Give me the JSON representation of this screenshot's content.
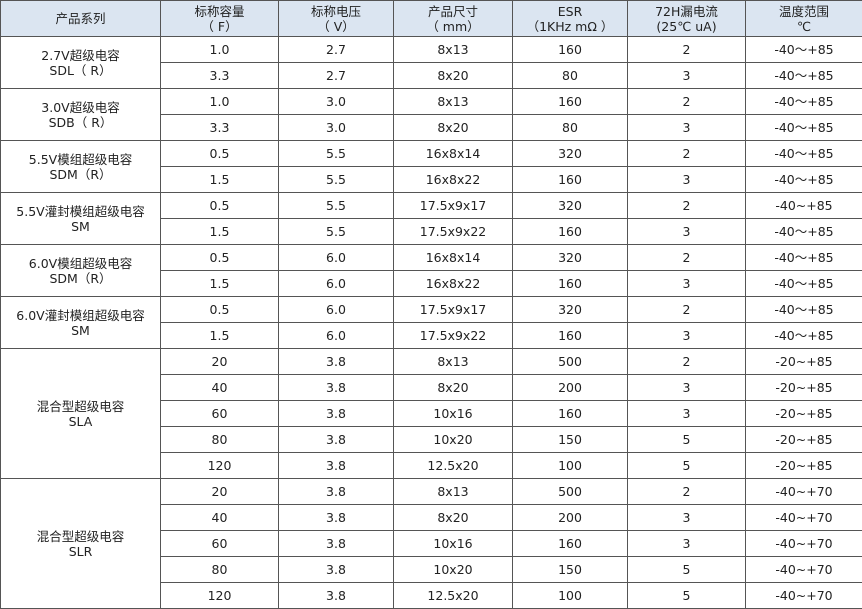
{
  "table": {
    "header": [
      [
        "产品系列"
      ],
      [
        "标称容量",
        "（ F）"
      ],
      [
        "标称电压",
        "（ V）"
      ],
      [
        "产品尺寸",
        "（ mm）"
      ],
      [
        "ESR",
        "（1KHz mΩ ）"
      ],
      [
        "72H漏电流",
        "(25℃ uA)"
      ],
      [
        "温度范围",
        "℃"
      ]
    ],
    "groups": [
      {
        "name": [
          "2.7V超级电容",
          "SDL（ R）"
        ],
        "rows": [
          [
            "1.0",
            "2.7",
            "8x13",
            "160",
            "2",
            "-40～+85"
          ],
          [
            "3.3",
            "2.7",
            "8x20",
            "80",
            "3",
            "-40～+85"
          ]
        ]
      },
      {
        "name": [
          "3.0V超级电容",
          "SDB（ R）"
        ],
        "rows": [
          [
            "1.0",
            "3.0",
            "8x13",
            "160",
            "2",
            "-40～+85"
          ],
          [
            "3.3",
            "3.0",
            "8x20",
            "80",
            "3",
            "-40～+85"
          ]
        ]
      },
      {
        "name": [
          "5.5V模组超级电容",
          "SDM（R）"
        ],
        "rows": [
          [
            "0.5",
            "5.5",
            "16x8x14",
            "320",
            "2",
            "-40～+85"
          ],
          [
            "1.5",
            "5.5",
            "16x8x22",
            "160",
            "3",
            "-40～+85"
          ]
        ]
      },
      {
        "name": [
          "5.5V灌封模组超级电容",
          "SM"
        ],
        "rows": [
          [
            "0.5",
            "5.5",
            "17.5x9x17",
            "320",
            "2",
            "-40~+85"
          ],
          [
            "1.5",
            "5.5",
            "17.5x9x22",
            "160",
            "3",
            "-40～+85"
          ]
        ]
      },
      {
        "name": [
          "6.0V模组超级电容",
          "SDM（R）"
        ],
        "rows": [
          [
            "0.5",
            "6.0",
            "16x8x14",
            "320",
            "2",
            "-40～+85"
          ],
          [
            "1.5",
            "6.0",
            "16x8x22",
            "160",
            "3",
            "-40～+85"
          ]
        ]
      },
      {
        "name": [
          "6.0V灌封模组超级电容",
          "SM"
        ],
        "rows": [
          [
            "0.5",
            "6.0",
            "17.5x9x17",
            "320",
            "2",
            "-40～+85"
          ],
          [
            "1.5",
            "6.0",
            "17.5x9x22",
            "160",
            "3",
            "-40～+85"
          ]
        ]
      },
      {
        "name": [
          "混合型超级电容",
          "SLA"
        ],
        "rows": [
          [
            "20",
            "3.8",
            "8x13",
            "500",
            "2",
            "-20~+85"
          ],
          [
            "40",
            "3.8",
            "8x20",
            "200",
            "3",
            "-20~+85"
          ],
          [
            "60",
            "3.8",
            "10x16",
            "160",
            "3",
            "-20~+85"
          ],
          [
            "80",
            "3.8",
            "10x20",
            "150",
            "5",
            "-20~+85"
          ],
          [
            "120",
            "3.8",
            "12.5x20",
            "100",
            "5",
            "-20~+85"
          ]
        ]
      },
      {
        "name": [
          "混合型超级电容",
          "SLR"
        ],
        "rows": [
          [
            "20",
            "3.8",
            "8x13",
            "500",
            "2",
            "-40~+70"
          ],
          [
            "40",
            "3.8",
            "8x20",
            "200",
            "3",
            "-40~+70"
          ],
          [
            "60",
            "3.8",
            "10x16",
            "160",
            "3",
            "-40~+70"
          ],
          [
            "80",
            "3.8",
            "10x20",
            "150",
            "5",
            "-40~+70"
          ],
          [
            "120",
            "3.8",
            "12.5x20",
            "100",
            "5",
            "-40~+70"
          ]
        ]
      }
    ]
  }
}
